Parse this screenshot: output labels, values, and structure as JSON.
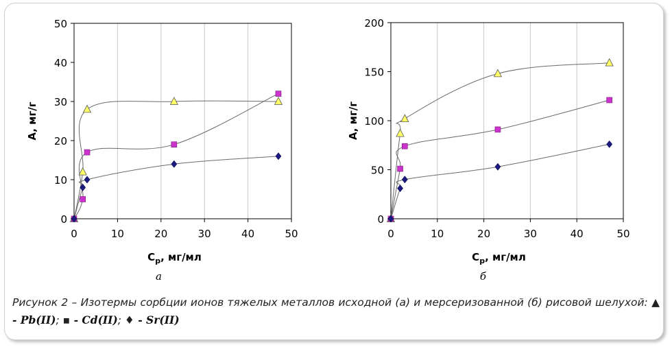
{
  "chart_data": [
    {
      "type": "scatter",
      "panel_label": "а",
      "ylabel": "A, мг/г",
      "xlabel": "Cp, мг/мл",
      "xlabel_main": "C",
      "xlabel_sub": "p",
      "xlabel_unit": ", мг/мл",
      "xlim": [
        0,
        50
      ],
      "ylim": [
        0,
        50
      ],
      "xticks": [
        "0",
        "10",
        "20",
        "30",
        "40",
        "50"
      ],
      "yticks": [
        "0",
        "10",
        "20",
        "30",
        "40",
        "50"
      ],
      "grid": "vertical",
      "series": [
        {
          "marker": "triangle",
          "color": "#ffff66",
          "x": [
            0,
            2,
            3,
            23,
            47
          ],
          "y": [
            0,
            12,
            28,
            30,
            30
          ]
        },
        {
          "marker": "square",
          "color": "#cc33cc",
          "x": [
            0,
            2,
            3,
            23,
            47
          ],
          "y": [
            0,
            5,
            17,
            19,
            32
          ]
        },
        {
          "marker": "diamond",
          "color": "#1a1a80",
          "x": [
            0,
            2,
            3,
            23,
            47
          ],
          "y": [
            0,
            8,
            10,
            14,
            16
          ]
        }
      ]
    },
    {
      "type": "scatter",
      "panel_label": "б",
      "ylabel": "A, мг/г",
      "xlabel": "Cp, мг/мл",
      "xlabel_main": "C",
      "xlabel_sub": "p",
      "xlabel_unit": ", мг/мл",
      "xlim": [
        0,
        50
      ],
      "ylim": [
        0,
        200
      ],
      "xticks": [
        "0",
        "10",
        "20",
        "30",
        "40",
        "50"
      ],
      "yticks": [
        "0",
        "50",
        "100",
        "150",
        "200"
      ],
      "grid": "vertical",
      "series": [
        {
          "marker": "triangle",
          "color": "#ffff66",
          "x": [
            0,
            2,
            3,
            23,
            47
          ],
          "y": [
            0,
            87,
            102,
            148,
            159
          ]
        },
        {
          "marker": "square",
          "color": "#cc33cc",
          "x": [
            0,
            2,
            3,
            23,
            47
          ],
          "y": [
            0,
            51,
            74,
            91,
            121
          ]
        },
        {
          "marker": "diamond",
          "color": "#1a1a80",
          "x": [
            0,
            2,
            3,
            23,
            47
          ],
          "y": [
            0,
            31,
            40,
            53,
            76
          ]
        }
      ]
    }
  ],
  "caption": {
    "text": "Рисунок 2 – Изотермы сорбции ионов тяжелых металлов исходной (а) и мерсеризованной (б) рисовой шелухой: ",
    "pb_symbol": "▲",
    "pb_label": " - Pb(II)",
    "sep1": "; ",
    "cd_symbol": "▪",
    "cd_label": " - Cd(II)",
    "sep2": "; ",
    "sr_symbol": "♦",
    "sr_label": " - Sr(II)"
  }
}
